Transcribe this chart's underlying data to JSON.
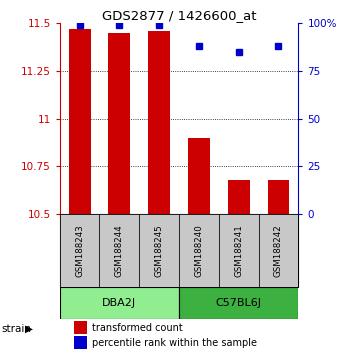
{
  "title": "GDS2877 / 1426600_at",
  "samples": [
    "GSM188243",
    "GSM188244",
    "GSM188245",
    "GSM188240",
    "GSM188241",
    "GSM188242"
  ],
  "groups": [
    {
      "name": "DBA2J",
      "color": "#90EE90",
      "indices": [
        0,
        1,
        2
      ]
    },
    {
      "name": "C57BL6J",
      "color": "#3CB040",
      "indices": [
        3,
        4,
        5
      ]
    }
  ],
  "transformed_counts": [
    11.47,
    11.45,
    11.46,
    10.9,
    10.68,
    10.68
  ],
  "percentile_ranks": [
    99,
    99,
    99,
    88,
    85,
    88
  ],
  "ymin": 10.5,
  "ymax": 11.5,
  "yticks": [
    10.5,
    10.75,
    11.0,
    11.25,
    11.5
  ],
  "ytick_labels": [
    "10.5",
    "10.75",
    "11",
    "11.25",
    "11.5"
  ],
  "right_yticks": [
    0,
    25,
    50,
    75,
    100
  ],
  "right_ytick_labels": [
    "0",
    "25",
    "50",
    "75",
    "100%"
  ],
  "bar_color": "#CC0000",
  "dot_color": "#0000CC",
  "bar_width": 0.55,
  "left_axis_color": "#CC0000",
  "right_axis_color": "#0000CC",
  "legend_items": [
    {
      "color": "#CC0000",
      "label": "transformed count"
    },
    {
      "color": "#0000CC",
      "label": "percentile rank within the sample"
    }
  ],
  "sample_box_color": "#C8C8C8",
  "fig_bg": "#FFFFFF"
}
